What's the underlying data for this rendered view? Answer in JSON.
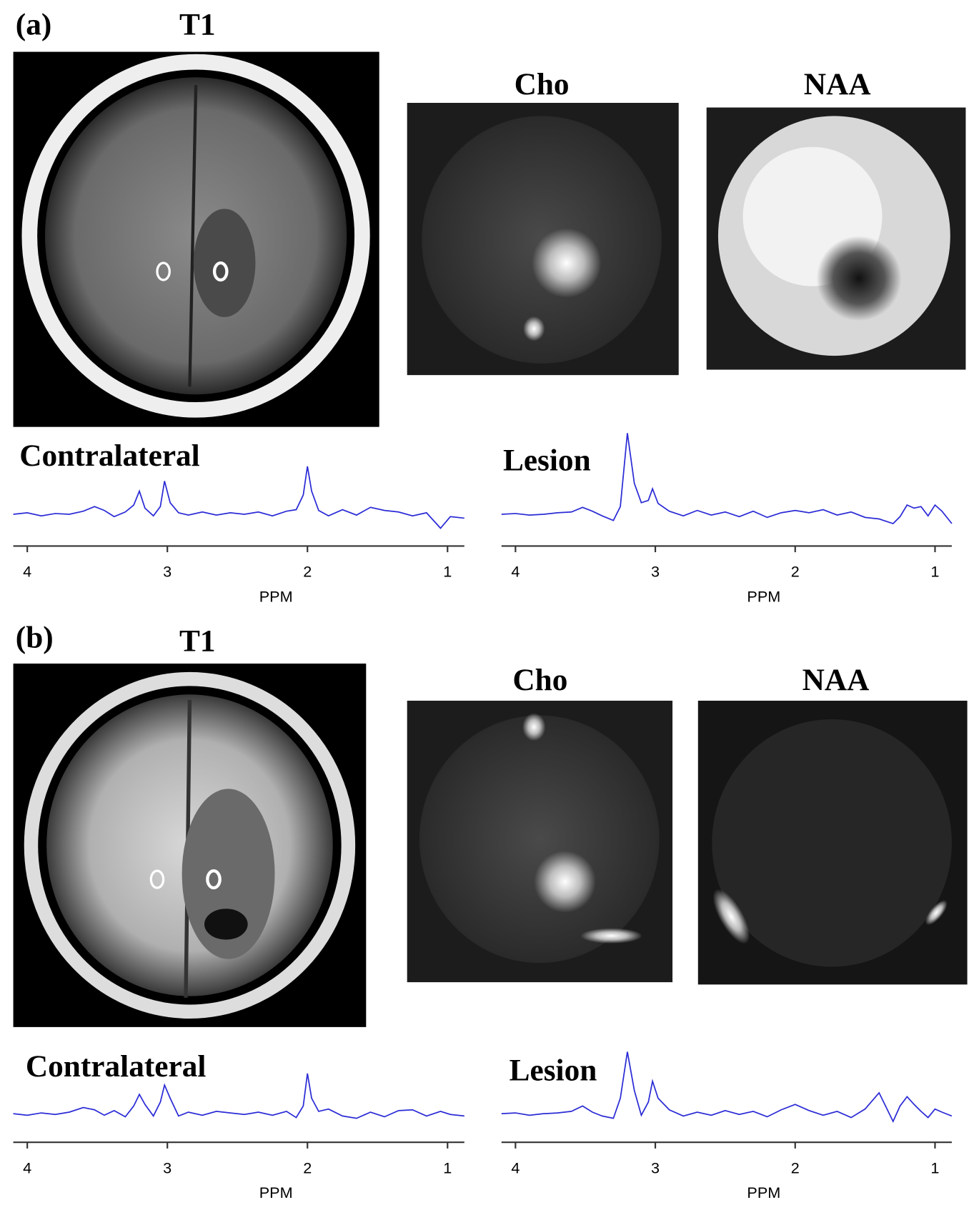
{
  "figure": {
    "panels": [
      {
        "label": "(a)",
        "t1": "T1",
        "cho": "Cho",
        "naa": "NAA"
      },
      {
        "label": "(b)",
        "t1": "T1",
        "cho": "Cho",
        "naa": "NAA"
      }
    ]
  },
  "chart_data": [
    {
      "type": "line",
      "title": "Contralateral",
      "x_label": "PPM",
      "color": "#2b2bd6",
      "xlim": [
        4.1,
        0.88
      ],
      "xticks": [
        4,
        3,
        2,
        1
      ],
      "ylim": [
        -30,
        110
      ],
      "x": [
        4.1,
        4.0,
        3.9,
        3.8,
        3.7,
        3.6,
        3.52,
        3.45,
        3.38,
        3.3,
        3.24,
        3.2,
        3.16,
        3.1,
        3.05,
        3.02,
        2.98,
        2.92,
        2.85,
        2.75,
        2.65,
        2.55,
        2.45,
        2.35,
        2.25,
        2.15,
        2.08,
        2.03,
        2.0,
        1.97,
        1.92,
        1.85,
        1.75,
        1.65,
        1.55,
        1.45,
        1.35,
        1.25,
        1.15,
        1.05,
        0.98,
        0.88
      ],
      "values": [
        0,
        2,
        -2,
        1,
        0,
        4,
        10,
        5,
        -3,
        3,
        12,
        30,
        8,
        -2,
        10,
        43,
        15,
        2,
        -1,
        3,
        -1,
        2,
        0,
        3,
        -2,
        4,
        6,
        25,
        62,
        30,
        5,
        -2,
        6,
        -1,
        9,
        5,
        3,
        -2,
        2,
        -18,
        -3,
        -5
      ]
    },
    {
      "type": "line",
      "title": "Lesion",
      "x_label": "PPM",
      "color": "#2b2bd6",
      "xlim": [
        4.1,
        0.88
      ],
      "xticks": [
        4,
        3,
        2,
        1
      ],
      "ylim": [
        -30,
        110
      ],
      "x": [
        4.1,
        4.0,
        3.9,
        3.8,
        3.7,
        3.6,
        3.52,
        3.45,
        3.38,
        3.3,
        3.25,
        3.2,
        3.15,
        3.1,
        3.05,
        3.02,
        2.98,
        2.9,
        2.8,
        2.7,
        2.6,
        2.5,
        2.4,
        2.3,
        2.2,
        2.1,
        2.0,
        1.9,
        1.8,
        1.7,
        1.6,
        1.5,
        1.4,
        1.3,
        1.25,
        1.2,
        1.15,
        1.1,
        1.05,
        1.0,
        0.95,
        0.88
      ],
      "values": [
        0,
        1,
        -1,
        0,
        2,
        3,
        9,
        4,
        -2,
        -8,
        10,
        105,
        40,
        15,
        18,
        33,
        14,
        4,
        -2,
        5,
        -1,
        3,
        -3,
        4,
        -4,
        2,
        5,
        2,
        6,
        -1,
        3,
        -4,
        -6,
        -12,
        -3,
        12,
        8,
        10,
        -2,
        12,
        4,
        -12
      ]
    },
    {
      "type": "line",
      "title": "Contralateral",
      "x_label": "PPM",
      "color": "#2b2bd6",
      "xlim": [
        4.1,
        0.88
      ],
      "xticks": [
        4,
        3,
        2,
        1
      ],
      "ylim": [
        -30,
        110
      ],
      "x": [
        4.1,
        4.0,
        3.9,
        3.8,
        3.7,
        3.6,
        3.52,
        3.45,
        3.38,
        3.3,
        3.24,
        3.2,
        3.16,
        3.1,
        3.05,
        3.02,
        2.98,
        2.92,
        2.85,
        2.75,
        2.65,
        2.55,
        2.45,
        2.35,
        2.25,
        2.15,
        2.08,
        2.03,
        2.0,
        1.97,
        1.92,
        1.85,
        1.75,
        1.65,
        1.55,
        1.45,
        1.35,
        1.25,
        1.15,
        1.05,
        0.98,
        0.88
      ],
      "values": [
        0,
        -2,
        1,
        -1,
        2,
        8,
        5,
        -2,
        4,
        -4,
        10,
        25,
        12,
        -3,
        15,
        37,
        20,
        -3,
        2,
        -2,
        3,
        1,
        -1,
        2,
        -2,
        3,
        -5,
        10,
        52,
        20,
        3,
        6,
        -3,
        -6,
        2,
        -4,
        4,
        5,
        -3,
        3,
        -1,
        -3
      ]
    },
    {
      "type": "line",
      "title": "Lesion",
      "x_label": "PPM",
      "color": "#2b2bd6",
      "xlim": [
        4.1,
        0.88
      ],
      "xticks": [
        4,
        3,
        2,
        1
      ],
      "ylim": [
        -30,
        110
      ],
      "x": [
        4.1,
        4.0,
        3.9,
        3.8,
        3.7,
        3.6,
        3.52,
        3.45,
        3.38,
        3.3,
        3.25,
        3.2,
        3.15,
        3.1,
        3.05,
        3.02,
        2.98,
        2.9,
        2.8,
        2.7,
        2.6,
        2.5,
        2.4,
        2.3,
        2.2,
        2.1,
        2.0,
        1.9,
        1.8,
        1.7,
        1.6,
        1.5,
        1.4,
        1.3,
        1.25,
        1.2,
        1.15,
        1.1,
        1.05,
        1.0,
        0.95,
        0.88
      ],
      "values": [
        0,
        1,
        -2,
        0,
        1,
        3,
        10,
        2,
        -3,
        -6,
        20,
        80,
        30,
        -2,
        15,
        42,
        20,
        5,
        -3,
        2,
        -2,
        4,
        -1,
        3,
        -4,
        5,
        12,
        4,
        -2,
        3,
        -5,
        6,
        27,
        -10,
        10,
        22,
        12,
        3,
        -5,
        6,
        2,
        -3
      ]
    }
  ]
}
